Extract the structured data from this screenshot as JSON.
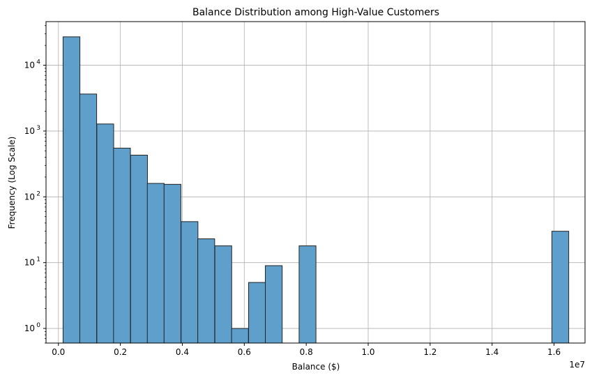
{
  "chart_data": {
    "type": "bar",
    "title": "Balance Distribution among High-Value Customers",
    "xlabel": "Balance ($)",
    "ylabel": "Frequency (Log Scale)",
    "x_offset_label": "1e7",
    "y_scale": "log",
    "xlim": [
      -0.04,
      1.7
    ],
    "ylim": [
      0.6,
      46000
    ],
    "grid": true,
    "bar_color": "#5f9fcc",
    "bar_edge_color": "#222222",
    "bin_width": 0.0544,
    "bins": [
      {
        "x0": 0.015,
        "count": 27000
      },
      {
        "x0": 0.069,
        "count": 3650
      },
      {
        "x0": 0.124,
        "count": 1280
      },
      {
        "x0": 0.178,
        "count": 550
      },
      {
        "x0": 0.233,
        "count": 430
      },
      {
        "x0": 0.287,
        "count": 160
      },
      {
        "x0": 0.341,
        "count": 155
      },
      {
        "x0": 0.396,
        "count": 42
      },
      {
        "x0": 0.45,
        "count": 23
      },
      {
        "x0": 0.505,
        "count": 18
      },
      {
        "x0": 0.559,
        "count": 1
      },
      {
        "x0": 0.614,
        "count": 5
      },
      {
        "x0": 0.668,
        "count": 9
      },
      {
        "x0": 0.777,
        "count": 18
      },
      {
        "x0": 1.593,
        "count": 30
      }
    ],
    "x_ticks": [
      0.0,
      0.2,
      0.4,
      0.6,
      0.8,
      1.0,
      1.2,
      1.4,
      1.6
    ],
    "x_tick_labels": [
      "0.0",
      "0.2",
      "0.4",
      "0.6",
      "0.8",
      "1.0",
      "1.2",
      "1.4",
      "1.6"
    ],
    "y_ticks": [
      1,
      10,
      100,
      1000,
      10000
    ],
    "y_tick_exponents": [
      "0",
      "1",
      "2",
      "3",
      "4"
    ]
  }
}
